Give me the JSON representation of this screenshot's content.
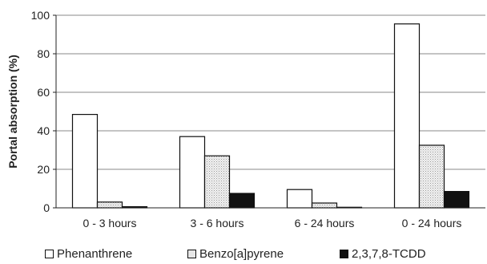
{
  "chart_data": {
    "type": "bar",
    "ylabel": "Portal absorption (%)",
    "xlabel": "",
    "ylim": [
      0,
      100
    ],
    "yticks": [
      0,
      20,
      40,
      60,
      80,
      100
    ],
    "grid": "horizontal",
    "legend_placement": "bottom",
    "categories": [
      "0 - 3 hours",
      "3 - 6 hours",
      "6 - 24 hours",
      "0 - 24 hours"
    ],
    "series": [
      {
        "name": "Phenanthrene",
        "fill": "#ffffff",
        "values": [
          48.5,
          37,
          9.5,
          95.5
        ]
      },
      {
        "name": "Benzo[a]pyrene",
        "fill": "#e6e6e6",
        "values": [
          3,
          27,
          2.5,
          32.5
        ]
      },
      {
        "name": "2,3,7,8-TCDD",
        "fill": "#111111",
        "values": [
          0.6,
          7.5,
          0.3,
          8.5
        ]
      }
    ]
  }
}
